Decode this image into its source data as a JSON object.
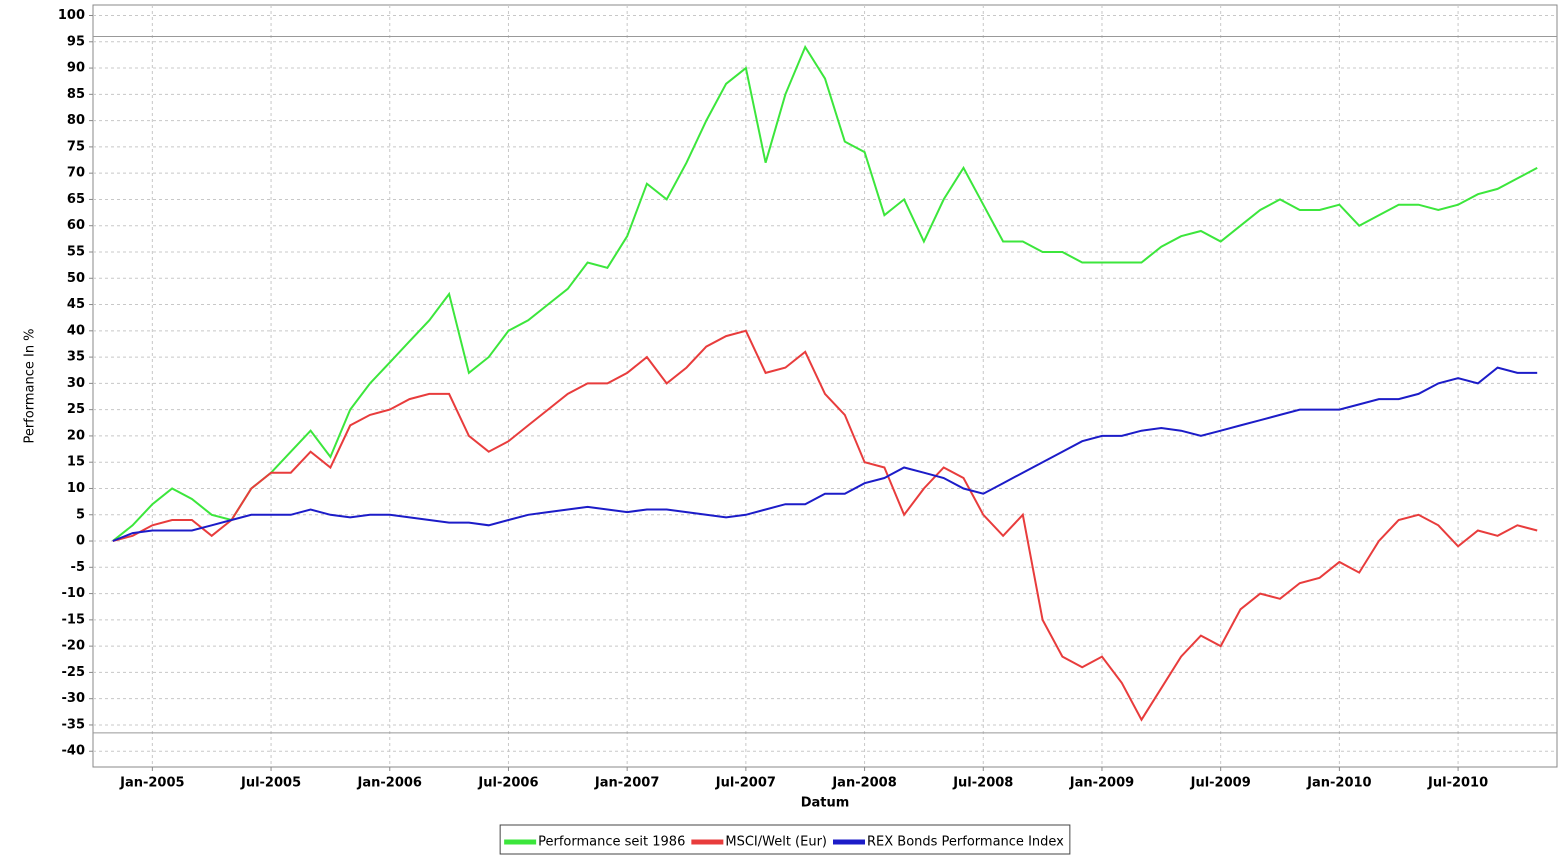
{
  "chart_data": {
    "type": "line",
    "x_label": "Datum",
    "y_label": "Performance In %",
    "x": [
      "2004-11",
      "2004-12",
      "2005-01",
      "2005-02",
      "2005-03",
      "2005-04",
      "2005-05",
      "2005-06",
      "2005-07",
      "2005-08",
      "2005-09",
      "2005-10",
      "2005-11",
      "2005-12",
      "2006-01",
      "2006-02",
      "2006-03",
      "2006-04",
      "2006-05",
      "2006-06",
      "2006-07",
      "2006-08",
      "2006-09",
      "2006-10",
      "2006-11",
      "2006-12",
      "2007-01",
      "2007-02",
      "2007-03",
      "2007-04",
      "2007-05",
      "2007-06",
      "2007-07",
      "2007-08",
      "2007-09",
      "2007-10",
      "2007-11",
      "2007-12",
      "2008-01",
      "2008-02",
      "2008-03",
      "2008-04",
      "2008-05",
      "2008-06",
      "2008-07",
      "2008-08",
      "2008-09",
      "2008-10",
      "2008-11",
      "2008-12",
      "2009-01",
      "2009-02",
      "2009-03",
      "2009-04",
      "2009-05",
      "2009-06",
      "2009-07",
      "2009-08",
      "2009-09",
      "2009-10",
      "2009-11",
      "2009-12",
      "2010-01",
      "2010-02",
      "2010-03",
      "2010-04",
      "2010-05",
      "2010-06",
      "2010-07",
      "2010-08",
      "2010-09",
      "2010-10",
      "2010-11"
    ],
    "series": [
      {
        "name": "Performance seit 1986",
        "color": "#3ce63c",
        "values": [
          0,
          3,
          7,
          10,
          8,
          5,
          4,
          10,
          13,
          17,
          21,
          16,
          25,
          30,
          34,
          38,
          42,
          47,
          32,
          35,
          40,
          42,
          45,
          48,
          53,
          52,
          58,
          68,
          65,
          72,
          80,
          87,
          90,
          72,
          85,
          94,
          88,
          76,
          74,
          62,
          65,
          57,
          65,
          71,
          64,
          57,
          57,
          55,
          55,
          53,
          53,
          53,
          53,
          56,
          58,
          59,
          57,
          60,
          63,
          65,
          63,
          63,
          64,
          60,
          62,
          64,
          64,
          63,
          64,
          66,
          67,
          69,
          71
        ]
      },
      {
        "name": "MSCI/Welt (Eur)",
        "color": "#e83c3c",
        "values": [
          0,
          1,
          3,
          4,
          4,
          1,
          4,
          10,
          13,
          13,
          17,
          14,
          22,
          24,
          25,
          27,
          28,
          28,
          20,
          17,
          19,
          22,
          25,
          28,
          30,
          30,
          32,
          35,
          30,
          33,
          37,
          39,
          40,
          32,
          33,
          36,
          28,
          24,
          15,
          14,
          5,
          10,
          14,
          12,
          5,
          1,
          5,
          -15,
          -22,
          -24,
          -22,
          -27,
          -34,
          -28,
          -22,
          -18,
          -20,
          -13,
          -10,
          -11,
          -8,
          -7,
          -4,
          -6,
          0,
          4,
          5,
          3,
          -1,
          2,
          1,
          3,
          2
        ]
      },
      {
        "name": "REX Bonds Performance Index",
        "color": "#1c1cc8",
        "values": [
          0,
          1.5,
          2,
          2,
          2,
          3,
          4,
          5,
          5,
          5,
          6,
          5,
          4.5,
          5,
          5,
          4.5,
          4,
          3.5,
          3.5,
          3,
          4,
          5,
          5.5,
          6,
          6.5,
          6,
          5.5,
          6,
          6,
          5.5,
          5,
          4.5,
          5,
          6,
          7,
          7,
          9,
          9,
          11,
          12,
          14,
          13,
          12,
          10,
          9,
          11,
          13,
          15,
          17,
          19,
          20,
          20,
          21,
          21.5,
          21,
          20,
          21,
          22,
          23,
          24,
          25,
          25,
          25,
          26,
          27,
          27,
          28,
          30,
          31,
          30,
          33,
          32,
          32
        ]
      }
    ],
    "xlim": [
      "2004-10",
      "2010-12"
    ],
    "xticks": [
      {
        "value": "2005-01",
        "label": "Jan-2005"
      },
      {
        "value": "2005-07",
        "label": "Jul-2005"
      },
      {
        "value": "2006-01",
        "label": "Jan-2006"
      },
      {
        "value": "2006-07",
        "label": "Jul-2006"
      },
      {
        "value": "2007-01",
        "label": "Jan-2007"
      },
      {
        "value": "2007-07",
        "label": "Jul-2007"
      },
      {
        "value": "2008-01",
        "label": "Jan-2008"
      },
      {
        "value": "2008-07",
        "label": "Jul-2008"
      },
      {
        "value": "2009-01",
        "label": "Jan-2009"
      },
      {
        "value": "2009-07",
        "label": "Jul-2009"
      },
      {
        "value": "2010-01",
        "label": "Jan-2010"
      },
      {
        "value": "2010-07",
        "label": "Jul-2010"
      }
    ],
    "ylim": [
      -43,
      102
    ],
    "yticks": [
      -40,
      -35,
      -30,
      -25,
      -20,
      -15,
      -10,
      -5,
      0,
      5,
      10,
      15,
      20,
      25,
      30,
      35,
      40,
      45,
      50,
      55,
      60,
      65,
      70,
      75,
      80,
      85,
      90,
      95,
      100
    ],
    "reference_lines": [
      96,
      -36.5
    ],
    "grid": true,
    "legend": "bottom"
  }
}
